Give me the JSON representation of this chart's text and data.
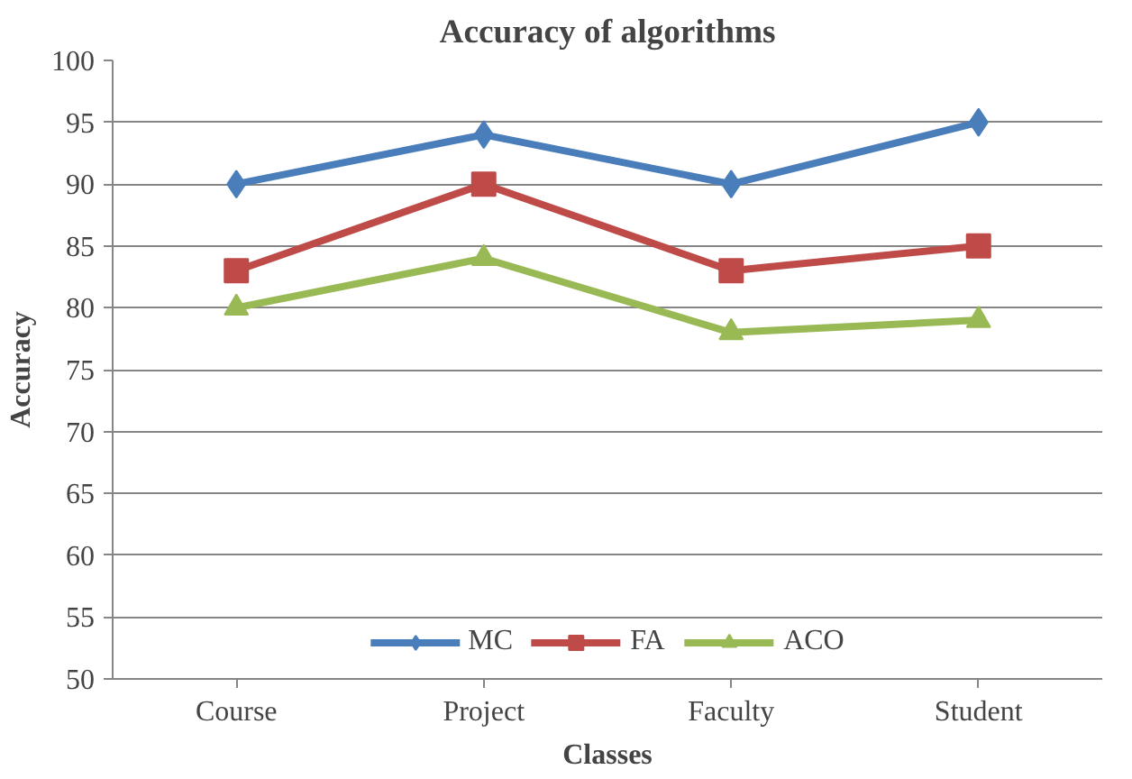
{
  "chart_data": {
    "type": "line",
    "title": "Accuracy of algorithms",
    "xlabel": "Classes",
    "ylabel": "Accuracy",
    "categories": [
      "Course",
      "Project",
      "Faculty",
      "Student"
    ],
    "series": [
      {
        "name": "MC",
        "color": "#4a7ebb",
        "values": [
          90,
          94,
          90,
          95
        ],
        "marker": "diamond"
      },
      {
        "name": "FA",
        "color": "#be4b48",
        "values": [
          83,
          90,
          83,
          85
        ],
        "marker": "square"
      },
      {
        "name": "ACO",
        "color": "#98b954",
        "values": [
          80,
          84,
          78,
          79
        ],
        "marker": "triangle"
      }
    ],
    "ylim": [
      50,
      100
    ],
    "yticks": [
      50,
      55,
      60,
      65,
      70,
      75,
      80,
      85,
      90,
      95,
      100
    ],
    "grid": "y",
    "legend": "bottom",
    "line_style": "solid"
  }
}
